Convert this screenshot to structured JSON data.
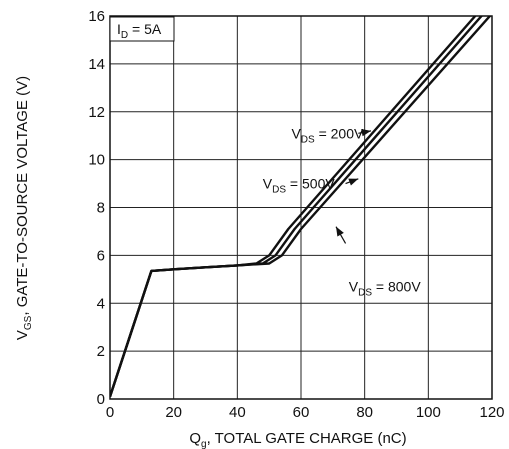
{
  "chart_data": {
    "type": "line",
    "xlabel": {
      "main": "Q",
      "sub": "g",
      "rest": ", TOTAL GATE CHARGE (nC)"
    },
    "ylabel": {
      "main": "V",
      "sub": "GS",
      "rest": ", GATE-TO-SOURCE  VOLTAGE (V)"
    },
    "xlim": [
      0,
      120
    ],
    "ylim": [
      0,
      16
    ],
    "xticks": [
      0,
      20,
      40,
      60,
      80,
      100,
      120
    ],
    "yticks": [
      0,
      2,
      4,
      6,
      8,
      10,
      12,
      14,
      16
    ],
    "grid": true,
    "condition_box": {
      "main": "I",
      "sub": "D",
      "rest": " = 5A"
    },
    "series": [
      {
        "name": "V_DS = 200V",
        "x": [
          0,
          13,
          20,
          30,
          40,
          46,
          50,
          56,
          120
        ],
        "y": [
          0.1,
          5.35,
          5.42,
          5.5,
          5.58,
          5.66,
          6.0,
          7.1,
          16.8
        ]
      },
      {
        "name": "V_DS = 500V",
        "x": [
          0,
          13,
          20,
          30,
          40,
          48,
          52,
          58,
          120
        ],
        "y": [
          0.1,
          5.35,
          5.42,
          5.5,
          5.58,
          5.66,
          6.0,
          7.1,
          16.5
        ]
      },
      {
        "name": "V_DS = 800V",
        "x": [
          0,
          13,
          20,
          30,
          40,
          50,
          54,
          60,
          120
        ],
        "y": [
          0.1,
          5.35,
          5.42,
          5.5,
          5.58,
          5.66,
          6.0,
          7.1,
          16.1
        ]
      }
    ],
    "annotations": [
      {
        "main": "V",
        "sub": "DS",
        "rest": " = 200V",
        "target": [
          82,
          11.2
        ],
        "text_at": [
          57,
          11.1
        ],
        "tail_at": [
          78,
          11.1
        ]
      },
      {
        "main": "V",
        "sub": "DS",
        "rest": " = 500V",
        "target": [
          78,
          9.2
        ],
        "text_at": [
          48,
          9.0
        ],
        "tail_at": [
          74,
          9.0
        ]
      },
      {
        "main": "V",
        "sub": "DS",
        "rest": " = 800V",
        "target": [
          71,
          7.2
        ],
        "text_at": [
          75,
          4.7
        ],
        "tail_at": [
          74,
          6.5
        ]
      }
    ]
  }
}
